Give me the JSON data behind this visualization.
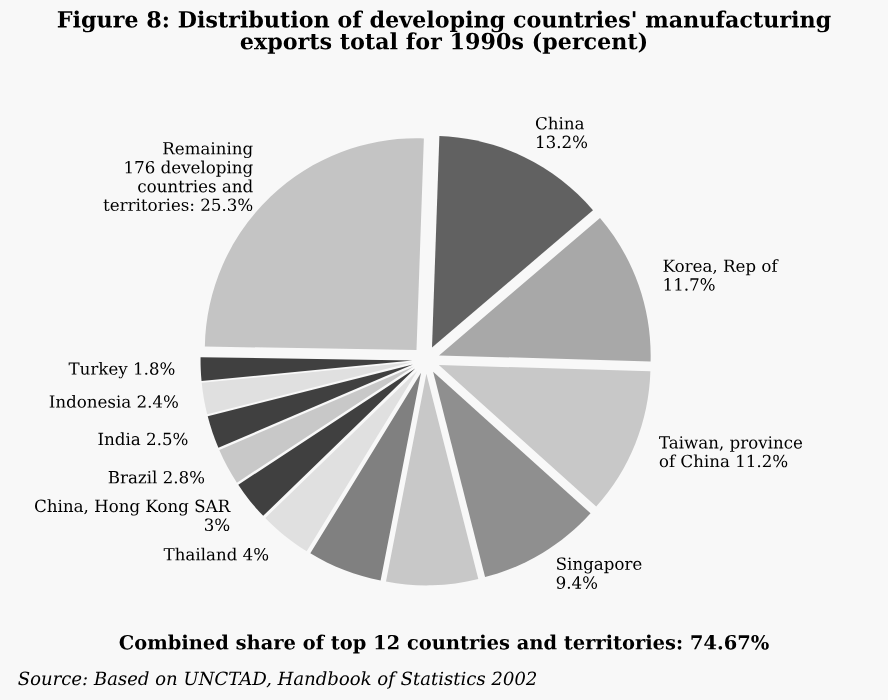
{
  "chart_data": {
    "type": "pie",
    "title": "Figure 8: Distribution of developing countries' manufacturing\nexports total for 1990s (percent)",
    "categories": [
      "China\n13.2%",
      "Korea, Rep of\n11.7%",
      "Taiwan, province\nof China 11.2%",
      "Singapore\n9.4%",
      null,
      null,
      "Thailand 4%",
      "China, Hong Kong SAR\n3%",
      "Brazil 2.8%",
      "India 2.5%",
      "Indonesia 2.4%",
      "Turkey 1.8%",
      "Remaining\n176 developing\ncountries and\nterritories: 25.3%"
    ],
    "values": [
      13.2,
      11.7,
      11.2,
      9.4,
      7.0,
      5.7,
      4,
      3,
      2.8,
      2.5,
      2.4,
      1.8,
      25.3
    ],
    "colors": [
      "#616161",
      "#a8a8a8",
      "#c8c8c8",
      "#8f8f8f",
      "#c8c8c8",
      "#808080",
      "#e0e0e0",
      "#404040",
      "#c8c8c8",
      "#404040",
      "#e0e0e0",
      "#404040",
      "#c4c4c4"
    ],
    "annotations": [
      "Combined share of top 12 countries and territories: 74.67%",
      "Source: Based on UNCTAD, Handbook of Statistics 2002"
    ]
  }
}
